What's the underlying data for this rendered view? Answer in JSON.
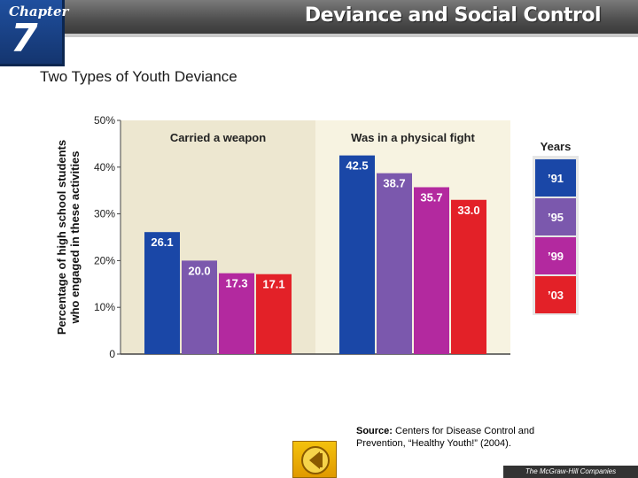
{
  "header": {
    "chapter_label": "Chapter",
    "chapter_number": "7",
    "title": "Deviance and Social Control"
  },
  "slide": {
    "title": "Two Types of Youth Deviance"
  },
  "chart_data": {
    "type": "bar",
    "ylabel": "Percentage of high school students who engaged in these activities",
    "ylabel_lines": [
      "Percentage of high school students",
      "who engaged in these activities"
    ],
    "ylim": [
      0,
      50
    ],
    "yticks": [
      "0",
      "10%",
      "20%",
      "30%",
      "40%",
      "50%"
    ],
    "categories": [
      "Carried a weapon",
      "Was in a physical fight"
    ],
    "legend_title": "Years",
    "legend_position": "right",
    "series": [
      {
        "name": "’91",
        "values": [
          26.1,
          42.5
        ],
        "labels": [
          "26.1",
          "42.5"
        ],
        "color": "#1a47a7"
      },
      {
        "name": "’95",
        "values": [
          20.0,
          38.7
        ],
        "labels": [
          "20.0",
          "38.7"
        ],
        "color": "#7b58ad"
      },
      {
        "name": "’99",
        "values": [
          17.3,
          35.7
        ],
        "labels": [
          "17.3",
          "35.7"
        ],
        "color": "#b3299f"
      },
      {
        "name": "’03",
        "values": [
          17.1,
          33.0
        ],
        "labels": [
          "17.1",
          "33.0"
        ],
        "color": "#e32128"
      }
    ],
    "grid": false,
    "background_colors": [
      "#ede7d0",
      "#f7f3e1"
    ]
  },
  "source": {
    "label": "Source:",
    "text": "Centers for Disease Control and Prevention, “Healthy Youth!” (2004)."
  },
  "footer": {
    "publisher": "The McGraw-Hill Companies"
  },
  "icons": {
    "back": "back-arrow-icon"
  }
}
